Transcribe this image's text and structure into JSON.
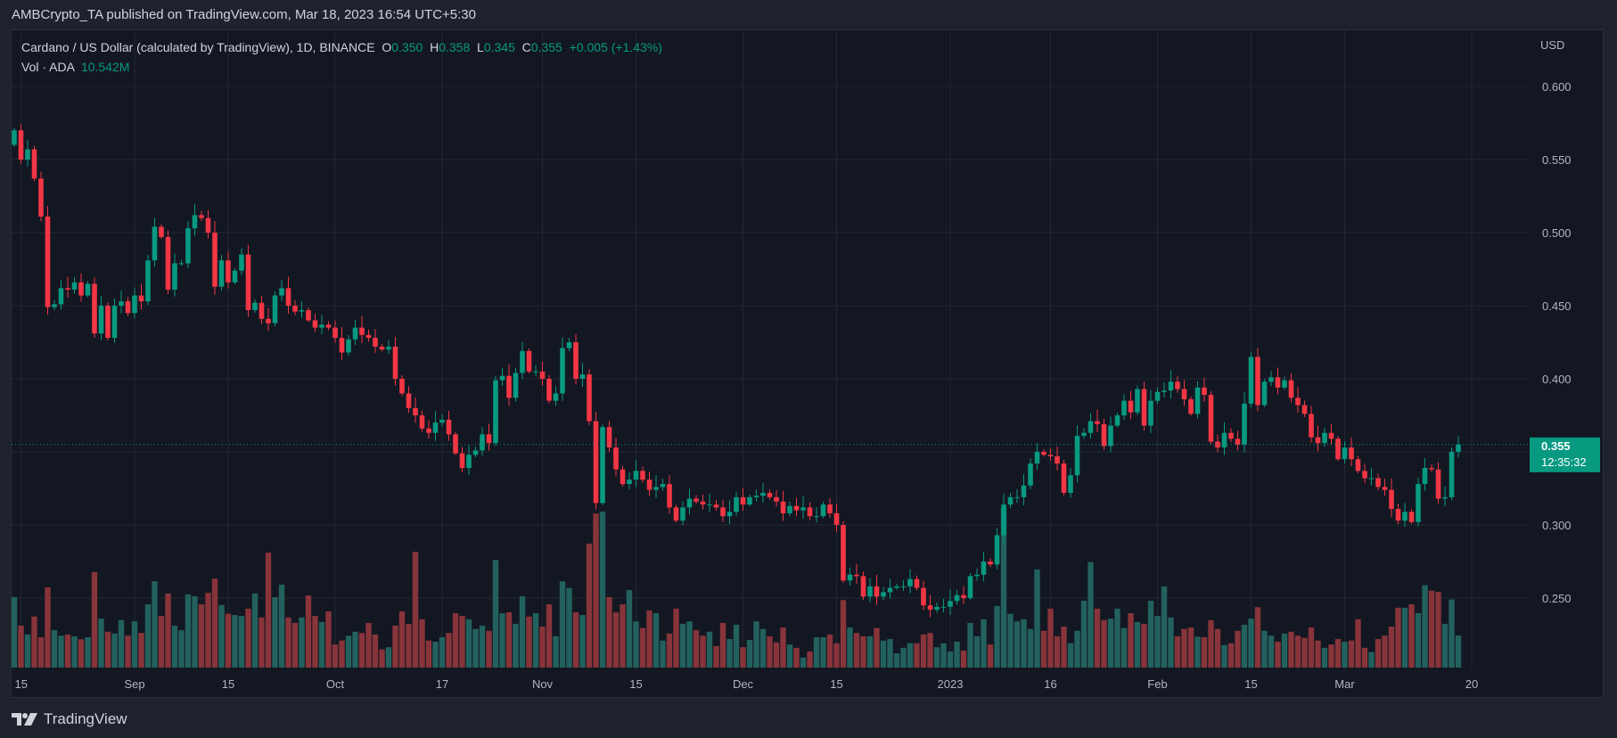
{
  "header": {
    "published": "AMBCrypto_TA published on TradingView.com, Mar 18, 2023 16:54 UTC+5:30"
  },
  "legend": {
    "symbol": "Cardano / US Dollar (calculated by TradingView), 1D, BINANCE",
    "o_label": "O",
    "o": "0.350",
    "h_label": "H",
    "h": "0.358",
    "l_label": "L",
    "l": "0.345",
    "c_label": "C",
    "c": "0.355",
    "change": "+0.005 (+1.43%)",
    "vol_label": "Vol · ADA",
    "vol": "10.542M"
  },
  "price_axis": {
    "currency": "USD",
    "ticks": [
      "0.600",
      "0.550",
      "0.500",
      "0.450",
      "0.400",
      "0.300",
      "0.250"
    ],
    "last_price": "0.355",
    "countdown": "12:35:32"
  },
  "time_axis": {
    "ticks": [
      {
        "label": "15",
        "date": "2022-08-15"
      },
      {
        "label": "Sep",
        "date": "2022-09-01"
      },
      {
        "label": "15",
        "date": "2022-09-15"
      },
      {
        "label": "Oct",
        "date": "2022-10-01"
      },
      {
        "label": "17",
        "date": "2022-10-17"
      },
      {
        "label": "Nov",
        "date": "2022-11-01"
      },
      {
        "label": "15",
        "date": "2022-11-15"
      },
      {
        "label": "Dec",
        "date": "2022-12-01"
      },
      {
        "label": "15",
        "date": "2022-12-15"
      },
      {
        "label": "2023",
        "date": "2023-01-01"
      },
      {
        "label": "16",
        "date": "2023-01-16"
      },
      {
        "label": "Feb",
        "date": "2023-02-01"
      },
      {
        "label": "15",
        "date": "2023-02-15"
      },
      {
        "label": "Mar",
        "date": "2023-03-01"
      },
      {
        "label": "20",
        "date": "2023-03-20"
      }
    ]
  },
  "footer": {
    "brand": "TradingView"
  },
  "colors": {
    "up": "#089981",
    "down": "#f23645",
    "vol_up": "#22615e",
    "vol_down": "#87343a",
    "background": "#131722",
    "grid": "#232733"
  },
  "chart_data": {
    "type": "candlestick",
    "interval": "1D",
    "start_date": "2022-08-14",
    "end_date": "2023-03-18",
    "ylim": [
      0.25,
      0.6
    ],
    "grid": true,
    "first_open": 0.56,
    "close": [
      0.57,
      0.55,
      0.557,
      0.537,
      0.511,
      0.449,
      0.451,
      0.462,
      0.461,
      0.466,
      0.457,
      0.465,
      0.431,
      0.45,
      0.428,
      0.45,
      0.453,
      0.445,
      0.457,
      0.453,
      0.481,
      0.504,
      0.497,
      0.461,
      0.479,
      0.479,
      0.503,
      0.512,
      0.51,
      0.5,
      0.463,
      0.481,
      0.466,
      0.474,
      0.485,
      0.447,
      0.452,
      0.441,
      0.438,
      0.457,
      0.462,
      0.45,
      0.446,
      0.447,
      0.44,
      0.435,
      0.437,
      0.435,
      0.428,
      0.418,
      0.427,
      0.435,
      0.43,
      0.428,
      0.422,
      0.42,
      0.422,
      0.4,
      0.39,
      0.38,
      0.375,
      0.366,
      0.363,
      0.37,
      0.372,
      0.362,
      0.349,
      0.339,
      0.348,
      0.351,
      0.362,
      0.356,
      0.399,
      0.402,
      0.387,
      0.404,
      0.419,
      0.405,
      0.405,
      0.4,
      0.385,
      0.39,
      0.421,
      0.425,
      0.4,
      0.403,
      0.371,
      0.315,
      0.367,
      0.353,
      0.338,
      0.328,
      0.331,
      0.337,
      0.331,
      0.324,
      0.326,
      0.328,
      0.312,
      0.303,
      0.312,
      0.318,
      0.316,
      0.314,
      0.314,
      0.312,
      0.306,
      0.309,
      0.319,
      0.314,
      0.319,
      0.32,
      0.322,
      0.319,
      0.316,
      0.308,
      0.313,
      0.31,
      0.312,
      0.306,
      0.306,
      0.314,
      0.308,
      0.3,
      0.262,
      0.266,
      0.265,
      0.251,
      0.258,
      0.251,
      0.254,
      0.257,
      0.258,
      0.258,
      0.263,
      0.257,
      0.245,
      0.242,
      0.244,
      0.244,
      0.248,
      0.252,
      0.25,
      0.265,
      0.266,
      0.275,
      0.273,
      0.293,
      0.314,
      0.319,
      0.319,
      0.327,
      0.342,
      0.35,
      0.348,
      0.347,
      0.342,
      0.322,
      0.334,
      0.361,
      0.363,
      0.371,
      0.369,
      0.354,
      0.368,
      0.375,
      0.385,
      0.377,
      0.393,
      0.368,
      0.385,
      0.391,
      0.392,
      0.398,
      0.393,
      0.386,
      0.376,
      0.394,
      0.389,
      0.357,
      0.353,
      0.363,
      0.359,
      0.355,
      0.383,
      0.415,
      0.382,
      0.398,
      0.401,
      0.394,
      0.399,
      0.387,
      0.382,
      0.376,
      0.36,
      0.356,
      0.363,
      0.359,
      0.345,
      0.353,
      0.345,
      0.337,
      0.332,
      0.332,
      0.326,
      0.324,
      0.311,
      0.303,
      0.309,
      0.302,
      0.328,
      0.339,
      0.338,
      0.318,
      0.319,
      0.35,
      0.355
    ],
    "volume_millions": [
      23.2,
      13.8,
      10.9,
      16.8,
      10.0,
      26.4,
      12.3,
      10.5,
      10.9,
      10.3,
      9.3,
      10.0,
      31.4,
      16.1,
      11.8,
      11.2,
      15.6,
      10.5,
      15.2,
      11.4,
      20.8,
      28.4,
      17.0,
      24.4,
      13.8,
      12.3,
      24.1,
      23.5,
      20.8,
      24.6,
      29.3,
      20.6,
      17.7,
      17.3,
      17.0,
      19.4,
      24.4,
      16.5,
      37.8,
      23.2,
      27.3,
      16.5,
      14.7,
      16.5,
      23.7,
      17.0,
      15.0,
      18.5,
      7.6,
      8.9,
      10.5,
      11.8,
      11.4,
      14.7,
      10.9,
      6.0,
      6.7,
      13.8,
      18.5,
      14.4,
      38.1,
      15.9,
      8.9,
      8.5,
      10.0,
      11.4,
      17.9,
      17.0,
      15.9,
      12.7,
      13.8,
      12.1,
      35.4,
      17.9,
      18.2,
      14.4,
      23.5,
      16.8,
      17.9,
      13.5,
      20.8,
      10.3,
      28.4,
      26.2,
      18.2,
      17.3,
      40.8,
      50.7,
      51.3,
      23.2,
      18.2,
      20.8,
      25.5,
      15.2,
      13.0,
      18.8,
      17.9,
      8.9,
      11.2,
      19.4,
      14.4,
      15.2,
      12.3,
      10.5,
      11.8,
      7.1,
      14.7,
      9.4,
      14.1,
      6.7,
      9.1,
      15.2,
      12.7,
      10.3,
      8.3,
      13.2,
      7.6,
      6.5,
      3.3,
      5.3,
      10.0,
      10.0,
      10.9,
      8.0,
      22.2,
      13.2,
      11.4,
      10.3,
      10.3,
      13.0,
      8.9,
      9.4,
      4.7,
      6.5,
      8.0,
      8.0,
      10.9,
      11.4,
      6.7,
      8.0,
      5.3,
      8.5,
      5.6,
      14.7,
      10.3,
      15.9,
      7.6,
      20.3,
      52.5,
      17.7,
      15.2,
      15.9,
      12.7,
      32.3,
      12.1,
      19.4,
      10.3,
      13.5,
      8.0,
      12.1,
      22.0,
      34.7,
      19.4,
      15.6,
      16.1,
      19.4,
      13.0,
      17.9,
      15.0,
      14.4,
      22.0,
      17.0,
      26.7,
      16.5,
      10.3,
      12.7,
      13.2,
      10.2,
      10.0,
      15.6,
      12.7,
      7.4,
      8.0,
      12.1,
      14.1,
      16.1,
      19.9,
      12.1,
      10.5,
      8.5,
      11.2,
      11.8,
      10.5,
      9.8,
      13.2,
      8.9,
      6.5,
      7.6,
      9.4,
      8.5,
      8.9,
      15.9,
      6.5,
      5.1,
      9.4,
      10.5,
      13.5,
      19.7,
      19.7,
      20.8,
      17.9,
      27.1,
      25.3,
      24.9,
      14.4,
      22.4,
      10.542
    ]
  }
}
